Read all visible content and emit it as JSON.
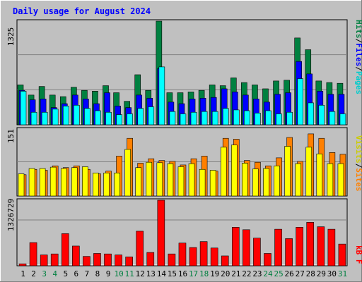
{
  "chart_data": [
    {
      "type": "bar",
      "panel": "top",
      "title": "Daily usage for August 2024",
      "y_max_label": "1325",
      "ylim": [
        0,
        1325
      ],
      "categories": [
        "1",
        "2",
        "3",
        "4",
        "5",
        "6",
        "7",
        "8",
        "9",
        "10",
        "11",
        "12",
        "13",
        "14",
        "15",
        "16",
        "17",
        "18",
        "19",
        "20",
        "21",
        "22",
        "23",
        "24",
        "25",
        "26",
        "27",
        "28",
        "29",
        "30",
        "31"
      ],
      "legend": [
        {
          "label": "Pages",
          "color": "#00ffff"
        },
        {
          "label": "Files",
          "color": "#0000ff"
        },
        {
          "label": "Hits",
          "color": "#008040"
        }
      ],
      "separators": [
        "/",
        "/"
      ],
      "series": [
        {
          "name": "Hits",
          "color": "#008040",
          "values": [
            510,
            380,
            490,
            380,
            360,
            480,
            440,
            430,
            500,
            410,
            300,
            640,
            440,
            1325,
            410,
            410,
            420,
            440,
            510,
            500,
            600,
            540,
            510,
            460,
            560,
            570,
            1110,
            960,
            560,
            540,
            530
          ]
        },
        {
          "name": "Files",
          "color": "#0000ff",
          "values": [
            440,
            320,
            330,
            220,
            270,
            380,
            330,
            270,
            410,
            240,
            220,
            380,
            340,
            720,
            290,
            270,
            330,
            340,
            350,
            460,
            420,
            380,
            330,
            290,
            390,
            410,
            810,
            650,
            430,
            390,
            390
          ]
        },
        {
          "name": "Pages",
          "color": "#00ffff",
          "values": [
            430,
            160,
            160,
            200,
            240,
            250,
            210,
            180,
            160,
            130,
            140,
            210,
            230,
            740,
            170,
            140,
            160,
            170,
            170,
            210,
            190,
            180,
            150,
            180,
            140,
            160,
            590,
            280,
            250,
            170,
            140
          ]
        }
      ]
    },
    {
      "type": "bar",
      "panel": "middle",
      "y_max_label": "151",
      "ylim": [
        0,
        151
      ],
      "categories": [
        "1",
        "2",
        "3",
        "4",
        "5",
        "6",
        "7",
        "8",
        "9",
        "10",
        "11",
        "12",
        "13",
        "14",
        "15",
        "16",
        "17",
        "18",
        "19",
        "20",
        "21",
        "22",
        "23",
        "24",
        "25",
        "26",
        "27",
        "28",
        "29",
        "30",
        "31"
      ],
      "legend": [
        {
          "label": "Sites",
          "color": "#ff8000"
        },
        {
          "label": "Visits",
          "color": "#ffff00"
        }
      ],
      "separators": [
        "/"
      ],
      "series": [
        {
          "name": "Visits",
          "color": "#ffff00",
          "values": [
            50,
            62,
            62,
            65,
            62,
            64,
            66,
            52,
            52,
            52,
            105,
            64,
            76,
            75,
            73,
            66,
            73,
            60,
            58,
            110,
            115,
            74,
            61,
            62,
            68,
            112,
            73,
            110,
            95,
            73,
            73
          ]
        },
        {
          "name": "Sites",
          "color": "#ff8000",
          "values": [
            48,
            60,
            58,
            68,
            64,
            68,
            60,
            50,
            56,
            90,
            130,
            74,
            84,
            80,
            78,
            70,
            84,
            90,
            56,
            130,
            128,
            80,
            76,
            68,
            86,
            132,
            78,
            140,
            130,
            98,
            94
          ]
        }
      ]
    },
    {
      "type": "bar",
      "panel": "bottom",
      "y_max_label": "1326729",
      "ylim": [
        0,
        1326729
      ],
      "categories": [
        "1",
        "2",
        "3",
        "4",
        "5",
        "6",
        "7",
        "8",
        "9",
        "10",
        "11",
        "12",
        "13",
        "14",
        "15",
        "16",
        "17",
        "18",
        "19",
        "20",
        "21",
        "22",
        "23",
        "24",
        "25",
        "26",
        "27",
        "28",
        "29",
        "30",
        "31"
      ],
      "legend": [
        {
          "label": "kB F",
          "color": "#ff0000"
        }
      ],
      "series": [
        {
          "name": "kB F",
          "color": "#ff0000",
          "values": [
            40000,
            470000,
            220000,
            240000,
            650000,
            400000,
            190000,
            250000,
            240000,
            220000,
            180000,
            700000,
            270000,
            1326729,
            240000,
            460000,
            370000,
            490000,
            360000,
            200000,
            780000,
            730000,
            560000,
            250000,
            740000,
            550000,
            780000,
            880000,
            790000,
            740000,
            440000
          ]
        }
      ]
    }
  ],
  "x_axis": {
    "labels": [
      "1",
      "2",
      "3",
      "4",
      "5",
      "6",
      "7",
      "8",
      "9",
      "10",
      "11",
      "12",
      "13",
      "14",
      "15",
      "16",
      "17",
      "18",
      "19",
      "20",
      "21",
      "22",
      "23",
      "24",
      "25",
      "26",
      "27",
      "28",
      "29",
      "30",
      "31"
    ],
    "weekend_indices": [
      2,
      3,
      9,
      10,
      16,
      17,
      23,
      24,
      30
    ],
    "weekday_color": "#000000",
    "weekend_color": "#008040"
  },
  "colors": {
    "background": "#c0c0c0",
    "plot_background": "#c0c0c0",
    "title": "#0000ff",
    "gridline": "#808080"
  }
}
